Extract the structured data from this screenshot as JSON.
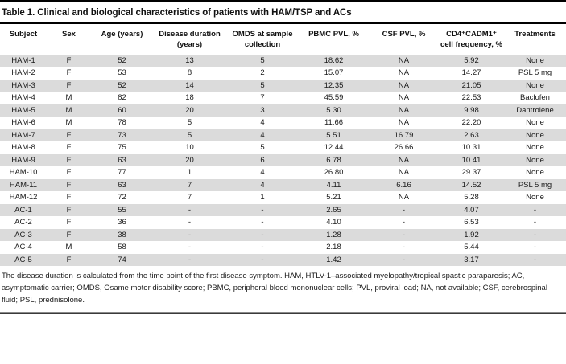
{
  "table": {
    "title": "Table 1. Clinical and biological characteristics of patients with HAM/TSP and ACs",
    "columns": [
      "Subject",
      "Sex",
      "Age (years)",
      "Disease duration (years)",
      "OMDS at sample collection",
      "PBMC PVL, %",
      "CSF PVL, %",
      "CD4⁺CADM1⁺ cell frequency, %",
      "Treatments"
    ],
    "rows": [
      [
        "HAM-1",
        "F",
        "52",
        "13",
        "5",
        "18.62",
        "NA",
        "5.92",
        "None"
      ],
      [
        "HAM-2",
        "F",
        "53",
        "8",
        "2",
        "15.07",
        "NA",
        "14.27",
        "PSL 5 mg"
      ],
      [
        "HAM-3",
        "F",
        "52",
        "14",
        "5",
        "12.35",
        "NA",
        "21.05",
        "None"
      ],
      [
        "HAM-4",
        "M",
        "82",
        "18",
        "7",
        "45.59",
        "NA",
        "22.53",
        "Baclofen"
      ],
      [
        "HAM-5",
        "M",
        "60",
        "20",
        "3",
        "5.30",
        "NA",
        "9.98",
        "Dantrolene"
      ],
      [
        "HAM-6",
        "M",
        "78",
        "5",
        "4",
        "11.66",
        "NA",
        "22.20",
        "None"
      ],
      [
        "HAM-7",
        "F",
        "73",
        "5",
        "4",
        "5.51",
        "16.79",
        "2.63",
        "None"
      ],
      [
        "HAM-8",
        "F",
        "75",
        "10",
        "5",
        "12.44",
        "26.66",
        "10.31",
        "None"
      ],
      [
        "HAM-9",
        "F",
        "63",
        "20",
        "6",
        "6.78",
        "NA",
        "10.41",
        "None"
      ],
      [
        "HAM-10",
        "F",
        "77",
        "1",
        "4",
        "26.80",
        "NA",
        "29.37",
        "None"
      ],
      [
        "HAM-11",
        "F",
        "63",
        "7",
        "4",
        "4.11",
        "6.16",
        "14.52",
        "PSL 5 mg"
      ],
      [
        "HAM-12",
        "F",
        "72",
        "7",
        "1",
        "5.21",
        "NA",
        "5.28",
        "None"
      ],
      [
        "AC-1",
        "F",
        "55",
        "-",
        "-",
        "2.65",
        "-",
        "4.07",
        "-"
      ],
      [
        "AC-2",
        "F",
        "36",
        "-",
        "-",
        "4.10",
        "-",
        "6.53",
        "-"
      ],
      [
        "AC-3",
        "F",
        "38",
        "-",
        "-",
        "1.28",
        "-",
        "1.92",
        "-"
      ],
      [
        "AC-4",
        "M",
        "58",
        "-",
        "-",
        "2.18",
        "-",
        "5.44",
        "-"
      ],
      [
        "AC-5",
        "F",
        "74",
        "-",
        "-",
        "1.42",
        "-",
        "3.17",
        "-"
      ]
    ],
    "footnote": "The disease duration is calculated from the time point of the first disease symptom. HAM, HTLV-1–associated myelopathy/tropical spastic paraparesis; AC, asymptomatic carrier; OMDS, Osame motor disability score; PBMC, peripheral blood mononuclear cells; PVL, proviral load; NA, not available; CSF, cerebrospinal fluid; PSL, prednisolone."
  },
  "colors": {
    "stripe": "#dbdbdb",
    "rule_top": "#000000",
    "rule_bottom": "#3a3a3a",
    "text": "#1a1a1a"
  }
}
